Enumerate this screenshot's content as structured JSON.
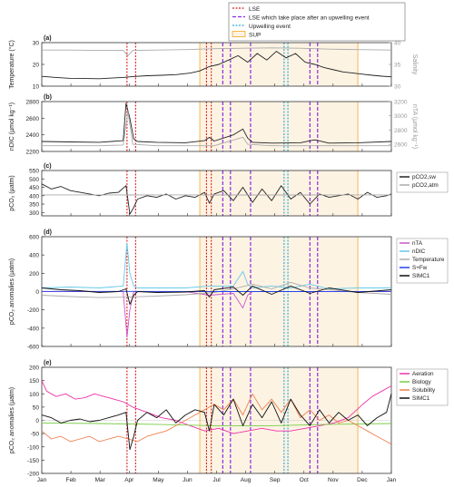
{
  "figure": {
    "top_legend": [
      {
        "label": "LSE",
        "color": "#d62020",
        "style": "dotted"
      },
      {
        "label": "LSE which take place after an upwelling event",
        "color": "#8a2be2",
        "style": "dashed"
      },
      {
        "label": "Upwelling event",
        "color": "#2aa7d9",
        "style": "dotted"
      },
      {
        "label": "SUP",
        "color": "#f5a623",
        "style": "box"
      }
    ],
    "months": [
      "Jan",
      "Feb",
      "Mar",
      "Apr",
      "May",
      "Jun",
      "Jul",
      "Aug",
      "Sep",
      "Oct",
      "Nov",
      "Dec",
      "Jan"
    ],
    "x_range_days": [
      0,
      365
    ],
    "lse_days": [
      89,
      98,
      172,
      177
    ],
    "lse_after_upwelling_days": [
      189,
      197,
      218,
      280,
      288
    ],
    "upwelling_days": [
      253,
      257
    ],
    "sup_days": [
      165,
      330
    ]
  },
  "chart_data": [
    {
      "panel": "(a)",
      "type": "line",
      "ylabel": "Temperature (°C)",
      "ylim": [
        10,
        30
      ],
      "yticks": [
        10,
        20,
        30
      ],
      "y2label": "Salinity",
      "y2lim": [
        30,
        40
      ],
      "y2ticks": [
        30,
        35,
        40
      ],
      "series": [
        {
          "name": "",
          "color": "#222222",
          "axis": "left",
          "x": [
            0,
            15,
            30,
            45,
            60,
            75,
            85,
            95,
            110,
            125,
            140,
            155,
            165,
            175,
            185,
            195,
            205,
            215,
            225,
            235,
            245,
            255,
            265,
            275,
            285,
            295,
            305,
            315,
            325,
            335,
            345,
            355,
            365
          ],
          "y": [
            14.5,
            14,
            13.6,
            13.5,
            13.4,
            13.8,
            14,
            14.4,
            14.8,
            15,
            15.3,
            16,
            17,
            19,
            20,
            22,
            24,
            21,
            25,
            22,
            26,
            23,
            25,
            21,
            20,
            18.5,
            17.5,
            16.5,
            16,
            15.5,
            15,
            14.6,
            14.3
          ]
        },
        {
          "name": "",
          "color": "#aaaaaa",
          "axis": "right",
          "x": [
            0,
            30,
            60,
            85,
            90,
            95,
            120,
            150,
            180,
            210,
            240,
            270,
            300,
            330,
            365
          ],
          "y": [
            38.3,
            38.3,
            38.2,
            38.2,
            37,
            38.2,
            38.3,
            38.4,
            38.6,
            38.7,
            38.8,
            38.7,
            38.5,
            38.4,
            38.3
          ]
        }
      ]
    },
    {
      "panel": "(b)",
      "type": "line",
      "ylabel": "nDIC (µmol kg⁻¹)",
      "ylim": [
        2200,
        2800
      ],
      "yticks": [
        2200,
        2400,
        2600,
        2800
      ],
      "y2label": "nTA (µmol kg⁻¹)",
      "y2lim": [
        2500,
        3200
      ],
      "y2ticks": [
        2600,
        2800,
        3000,
        3200
      ],
      "series": [
        {
          "name": "",
          "color": "#222222",
          "axis": "left",
          "x": [
            0,
            30,
            60,
            85,
            88,
            92,
            96,
            100,
            120,
            150,
            170,
            175,
            180,
            200,
            210,
            215,
            220,
            240,
            270,
            285,
            300,
            330,
            365
          ],
          "y": [
            2320,
            2315,
            2310,
            2330,
            2780,
            2600,
            2350,
            2320,
            2310,
            2305,
            2330,
            2370,
            2325,
            2400,
            2470,
            2360,
            2310,
            2300,
            2305,
            2340,
            2300,
            2305,
            2320
          ]
        },
        {
          "name": "",
          "color": "#aaaaaa",
          "axis": "right",
          "x": [
            0,
            30,
            60,
            85,
            90,
            95,
            120,
            150,
            180,
            210,
            215,
            240,
            270,
            300,
            330,
            365
          ],
          "y": [
            2580,
            2580,
            2580,
            2590,
            3060,
            2600,
            2580,
            2580,
            2580,
            2700,
            2600,
            2580,
            2580,
            2580,
            2580,
            2580
          ]
        }
      ]
    },
    {
      "panel": "(c)",
      "type": "line",
      "ylabel": "pCO₂ (µatm)",
      "ylim": [
        280,
        550
      ],
      "yticks": [
        300,
        350,
        400,
        450,
        500,
        550
      ],
      "legend": [
        {
          "label": "pCO2,sw",
          "color": "#222222"
        },
        {
          "label": "pCO2,atm",
          "color": "#aaaaaa"
        }
      ],
      "series": [
        {
          "name": "pCO2,sw",
          "color": "#222222",
          "x": [
            0,
            10,
            20,
            30,
            40,
            50,
            60,
            70,
            80,
            88,
            92,
            96,
            100,
            110,
            120,
            130,
            140,
            150,
            160,
            170,
            175,
            180,
            190,
            200,
            210,
            220,
            230,
            240,
            250,
            260,
            270,
            280,
            290,
            300,
            310,
            320,
            330,
            340,
            350,
            360,
            365
          ],
          "y": [
            470,
            440,
            455,
            430,
            420,
            410,
            400,
            415,
            420,
            460,
            290,
            330,
            380,
            400,
            390,
            410,
            380,
            400,
            390,
            420,
            355,
            410,
            430,
            370,
            450,
            360,
            440,
            370,
            460,
            380,
            420,
            350,
            410,
            390,
            400,
            410,
            380,
            420,
            390,
            400,
            410
          ]
        },
        {
          "name": "pCO2,atm",
          "color": "#aaaaaa",
          "x": [
            0,
            30,
            60,
            90,
            120,
            150,
            180,
            210,
            240,
            270,
            300,
            330,
            365
          ],
          "y": [
            405,
            405,
            405,
            404,
            405,
            405,
            404,
            404,
            404,
            404,
            405,
            405,
            405
          ]
        }
      ]
    },
    {
      "panel": "(d)",
      "type": "line",
      "ylabel": "pCO₂ anomalies (µatm)",
      "ylim": [
        -600,
        600
      ],
      "yticks": [
        -600,
        -400,
        -200,
        0,
        200,
        400,
        600
      ],
      "legend": [
        {
          "label": "nTA",
          "color": "#cc55cc"
        },
        {
          "label": "nDIC",
          "color": "#66c9e8"
        },
        {
          "label": "Temperature",
          "color": "#aaaaaa"
        },
        {
          "label": "S+Fw",
          "color": "#2244ee"
        },
        {
          "label": "SIMC1",
          "color": "#111111"
        }
      ],
      "series": [
        {
          "name": "nTA",
          "color": "#cc55cc",
          "x": [
            0,
            30,
            60,
            85,
            89,
            92,
            96,
            100,
            150,
            175,
            200,
            210,
            215,
            220,
            260,
            300,
            365
          ],
          "y": [
            0,
            0,
            0,
            0,
            -500,
            -200,
            0,
            0,
            0,
            -40,
            -20,
            -180,
            -40,
            0,
            0,
            0,
            0
          ]
        },
        {
          "name": "nDIC",
          "color": "#66c9e8",
          "x": [
            0,
            30,
            60,
            85,
            89,
            92,
            96,
            100,
            150,
            175,
            200,
            210,
            215,
            220,
            240,
            260,
            280,
            300,
            330,
            365
          ],
          "y": [
            40,
            50,
            40,
            60,
            530,
            200,
            60,
            40,
            40,
            60,
            60,
            220,
            80,
            40,
            60,
            40,
            80,
            30,
            40,
            40
          ]
        },
        {
          "name": "Temperature",
          "color": "#aaaaaa",
          "x": [
            0,
            30,
            60,
            90,
            120,
            150,
            180,
            200,
            220,
            240,
            260,
            280,
            300,
            330,
            365
          ],
          "y": [
            -40,
            -55,
            -65,
            -60,
            -50,
            -35,
            -10,
            30,
            80,
            30,
            100,
            40,
            20,
            -10,
            -30
          ]
        },
        {
          "name": "S+Fw",
          "color": "#2244ee",
          "x": [
            0,
            90,
            180,
            270,
            365
          ],
          "y": [
            2,
            2,
            0,
            0,
            2
          ]
        },
        {
          "name": "SIMC1",
          "color": "#111111",
          "x": [
            0,
            20,
            40,
            60,
            80,
            88,
            92,
            96,
            100,
            120,
            150,
            170,
            175,
            180,
            200,
            210,
            220,
            240,
            260,
            280,
            300,
            330,
            365
          ],
          "y": [
            40,
            20,
            10,
            -10,
            0,
            30,
            -140,
            -40,
            0,
            -10,
            -5,
            10,
            -60,
            20,
            50,
            -40,
            60,
            -30,
            60,
            -20,
            40,
            -10,
            20
          ]
        }
      ]
    },
    {
      "panel": "(e)",
      "type": "line",
      "ylabel": "pCO₂ anomalies (µatm)",
      "ylim": [
        -200,
        200
      ],
      "yticks": [
        -200,
        -150,
        -100,
        -50,
        0,
        50,
        100,
        150,
        200
      ],
      "legend": [
        {
          "label": "Aeration",
          "color": "#ee33aa"
        },
        {
          "label": "Biology",
          "color": "#77cc44"
        },
        {
          "label": "Solubility",
          "color": "#f08050"
        },
        {
          "label": "SIMC1",
          "color": "#111111"
        }
      ],
      "series": [
        {
          "name": "Aeration",
          "color": "#ee33aa",
          "x": [
            0,
            5,
            15,
            25,
            35,
            45,
            55,
            65,
            75,
            85,
            95,
            110,
            125,
            140,
            155,
            170,
            185,
            200,
            215,
            230,
            245,
            260,
            275,
            290,
            305,
            320,
            335,
            345,
            355,
            365
          ],
          "y": [
            150,
            110,
            90,
            100,
            80,
            85,
            100,
            90,
            80,
            70,
            50,
            30,
            10,
            0,
            -20,
            -40,
            -30,
            -50,
            -40,
            -30,
            -40,
            -40,
            -30,
            -20,
            -10,
            10,
            60,
            90,
            110,
            130
          ]
        },
        {
          "name": "Biology",
          "color": "#77cc44",
          "x": [
            0,
            60,
            120,
            180,
            240,
            300,
            365
          ],
          "y": [
            -10,
            -12,
            -15,
            -20,
            -20,
            -15,
            -12
          ]
        },
        {
          "name": "Solubility",
          "color": "#f08050",
          "x": [
            0,
            10,
            20,
            30,
            40,
            50,
            60,
            70,
            80,
            90,
            100,
            110,
            120,
            130,
            140,
            150,
            160,
            170,
            180,
            190,
            200,
            210,
            220,
            230,
            240,
            250,
            260,
            270,
            280,
            290,
            300,
            310,
            320,
            330,
            340,
            350,
            360,
            365
          ],
          "y": [
            -40,
            -70,
            -60,
            -80,
            -70,
            -60,
            -80,
            -70,
            -60,
            -70,
            -80,
            -60,
            -50,
            -40,
            -20,
            0,
            20,
            40,
            60,
            40,
            80,
            20,
            100,
            40,
            80,
            30,
            80,
            10,
            40,
            0,
            20,
            -10,
            0,
            -20,
            -40,
            -60,
            -80,
            -90
          ]
        },
        {
          "name": "SIMC1",
          "color": "#111111",
          "x": [
            0,
            10,
            20,
            30,
            40,
            50,
            60,
            70,
            80,
            88,
            92,
            96,
            100,
            110,
            120,
            130,
            140,
            150,
            160,
            170,
            175,
            180,
            190,
            200,
            210,
            220,
            230,
            240,
            250,
            260,
            270,
            280,
            290,
            300,
            310,
            320,
            330,
            340,
            350,
            360,
            365
          ],
          "y": [
            20,
            10,
            -10,
            0,
            5,
            -5,
            0,
            10,
            20,
            30,
            -110,
            -60,
            0,
            30,
            10,
            40,
            -10,
            20,
            40,
            30,
            -40,
            60,
            20,
            80,
            -20,
            60,
            10,
            70,
            -10,
            80,
            20,
            -20,
            40,
            -10,
            30,
            0,
            20,
            -20,
            10,
            30,
            100
          ]
        }
      ]
    }
  ]
}
